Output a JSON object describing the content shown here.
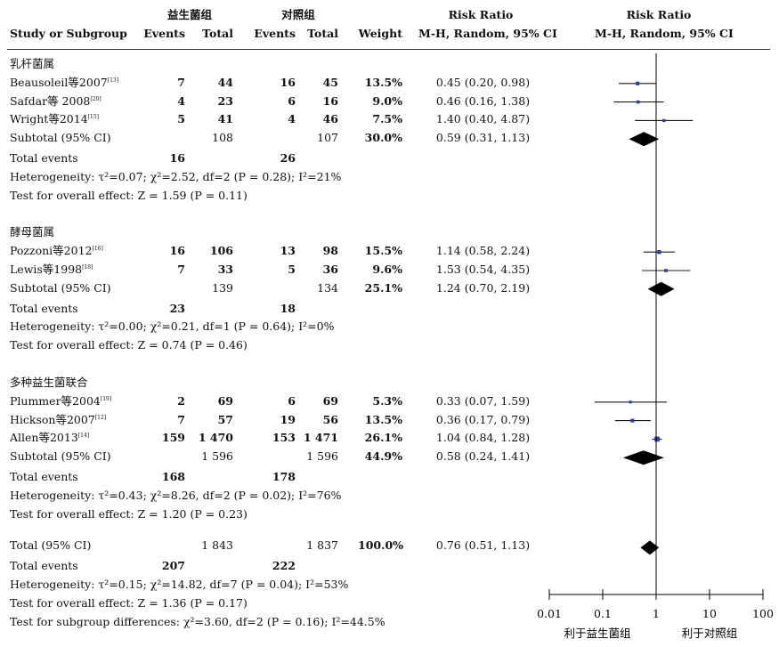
{
  "header": {
    "group1": "益生菌组",
    "group2": "对照组",
    "rr_top": "Risk Ratio",
    "study": "Study or Subgroup",
    "events": "Events",
    "total": "Total",
    "weight": "Weight",
    "rr_method": "M-H, Random, 95% CI"
  },
  "chart_data": {
    "type": "forest",
    "x_axis": {
      "scale": "log",
      "range": [
        0.01,
        100
      ],
      "ticks": [
        "0.01",
        "0.1",
        "1",
        "10",
        "100"
      ],
      "tick_values": [
        0.01,
        0.1,
        1,
        10,
        100
      ],
      "favours_left": "利于益生菌组",
      "favours_right": "利于对照组"
    },
    "subgroups": [
      {
        "title": "乳杆菌属",
        "studies": [
          {
            "name": "Beausoleil等2007",
            "ref": "[13]",
            "e1": "7",
            "n1": "44",
            "e2": "16",
            "n2": "45",
            "weight": "13.5%",
            "ci_text": "0.45 (0.20, 0.98)",
            "rr": 0.45,
            "lo": 0.2,
            "hi": 0.98
          },
          {
            "name": "Safdar等 2008",
            "ref": "[20]",
            "e1": "4",
            "n1": "23",
            "e2": "6",
            "n2": "16",
            "weight": "9.0%",
            "ci_text": "0.46 (0.16, 1.38)",
            "rr": 0.46,
            "lo": 0.16,
            "hi": 1.38
          },
          {
            "name": "Wright等2014",
            "ref": "[15]",
            "e1": "5",
            "n1": "41",
            "e2": "4",
            "n2": "46",
            "weight": "7.5%",
            "ci_text": "1.40 (0.40, 4.87)",
            "rr": 1.4,
            "lo": 0.4,
            "hi": 4.87
          }
        ],
        "subtotal": {
          "label": "Subtotal (95% CI)",
          "n1": "108",
          "n2": "107",
          "weight": "30.0%",
          "ci_text": "0.59 (0.31, 1.13)",
          "rr": 0.59,
          "lo": 0.31,
          "hi": 1.13
        },
        "total_events": {
          "label": "Total events",
          "e1": "16",
          "e2": "26"
        },
        "heterogeneity": "Heterogeneity: τ²=0.07;  χ²=2.52, df=2 (P = 0.28); I²=21%",
        "overall": "Test for overall effect: Z = 1.59 (P = 0.11)"
      },
      {
        "title": "酵母菌属",
        "studies": [
          {
            "name": "Pozzoni等2012",
            "ref": "[16]",
            "e1": "16",
            "n1": "106",
            "e2": "13",
            "n2": "98",
            "weight": "15.5%",
            "ci_text": "1.14 (0.58, 2.24)",
            "rr": 1.14,
            "lo": 0.58,
            "hi": 2.24
          },
          {
            "name": "Lewis等1998",
            "ref": "[18]",
            "e1": "7",
            "n1": "33",
            "e2": "5",
            "n2": "36",
            "weight": "9.6%",
            "ci_text": "1.53 (0.54, 4.35)",
            "rr": 1.53,
            "lo": 0.54,
            "hi": 4.35
          }
        ],
        "subtotal": {
          "label": "Subtotal (95% CI)",
          "n1": "139",
          "n2": "134",
          "weight": "25.1%",
          "ci_text": "1.24 (0.70, 2.19)",
          "rr": 1.24,
          "lo": 0.7,
          "hi": 2.19
        },
        "total_events": {
          "label": "Total events",
          "e1": "23",
          "e2": "18"
        },
        "heterogeneity": "Heterogeneity: τ²=0.00;  χ²=0.21, df=1 (P = 0.64); I²=0%",
        "overall": "Test for overall effect: Z = 0.74 (P = 0.46)"
      },
      {
        "title": "多种益生菌联合",
        "studies": [
          {
            "name": "Plummer等2004",
            "ref": "[19]",
            "e1": "2",
            "n1": "69",
            "e2": "6",
            "n2": "69",
            "weight": "5.3%",
            "ci_text": "0.33 (0.07, 1.59)",
            "rr": 0.33,
            "lo": 0.07,
            "hi": 1.59
          },
          {
            "name": "Hickson等2007",
            "ref": "[12]",
            "e1": "7",
            "n1": "57",
            "e2": "19",
            "n2": "56",
            "weight": "13.5%",
            "ci_text": "0.36 (0.17, 0.79)",
            "rr": 0.36,
            "lo": 0.17,
            "hi": 0.79
          },
          {
            "name": "Allen等2013",
            "ref": "[14]",
            "e1": "159",
            "n1": "1 470",
            "e2": "153",
            "n2": "1 471",
            "weight": "26.1%",
            "ci_text": "1.04 (0.84, 1.28)",
            "rr": 1.04,
            "lo": 0.84,
            "hi": 1.28
          }
        ],
        "subtotal": {
          "label": "Subtotal (95% CI)",
          "n1": "1 596",
          "n2": "1 596",
          "weight": "44.9%",
          "ci_text": "0.58 (0.24, 1.41)",
          "rr": 0.58,
          "lo": 0.24,
          "hi": 1.41
        },
        "total_events": {
          "label": "Total events",
          "e1": "168",
          "e2": "178"
        },
        "heterogeneity": "Heterogeneity: τ²=0.43;  χ²=8.26, df=2 (P = 0.02); I²=76%",
        "overall": "Test for overall effect: Z = 1.20 (P = 0.23)"
      }
    ],
    "total": {
      "label": "Total (95% CI)",
      "n1": "1 843",
      "n2": "1 837",
      "weight": "100.0%",
      "ci_text": "0.76 (0.51, 1.13)",
      "rr": 0.76,
      "lo": 0.51,
      "hi": 1.13
    },
    "total_events": {
      "label": "Total events",
      "e1": "207",
      "e2": "222"
    },
    "heterogeneity": "Heterogeneity: τ²=0.15;  χ²=14.82, df=7 (P = 0.04); I²=53%",
    "overall": "Test for overall effect: Z = 1.36 (P = 0.17)",
    "subgroup_diff": "Test for subgroup differences:  χ²=3.60, df=2 (P = 0.16); I²=44.5%"
  }
}
